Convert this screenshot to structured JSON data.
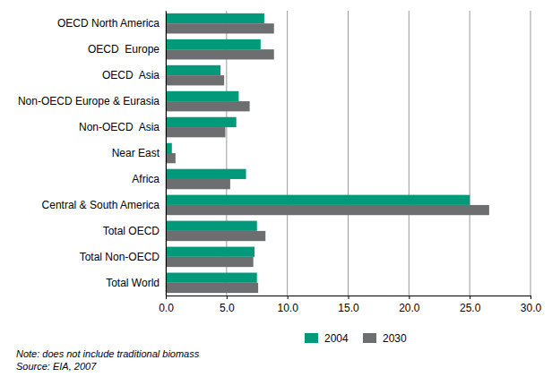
{
  "chart_data": {
    "type": "bar",
    "orientation": "horizontal",
    "grid": true,
    "legend": "bottom",
    "categories": [
      "OECD North America",
      "OECD  Europe",
      "OECD  Asia",
      "Non-OECD Europe & Eurasia",
      "Non-OECD  Asia",
      "Near East",
      "Africa",
      "Central & South America",
      "Total OECD",
      "Total Non-OECD",
      "Total World"
    ],
    "series": [
      {
        "name": "2004",
        "color": "#00997a",
        "values": [
          8.1,
          7.8,
          4.5,
          6.0,
          5.8,
          0.5,
          6.6,
          25.0,
          7.5,
          7.3,
          7.5
        ]
      },
      {
        "name": "2030",
        "color": "#6d6e70",
        "values": [
          8.9,
          8.9,
          4.8,
          6.9,
          4.9,
          0.8,
          5.3,
          26.6,
          8.2,
          7.2,
          7.6
        ]
      }
    ],
    "xlim": [
      0,
      30
    ],
    "xticks": [
      {
        "value": 0,
        "label": "0.0"
      },
      {
        "value": 5,
        "label": "5.0"
      },
      {
        "value": 10,
        "label": "10.0"
      },
      {
        "value": 15,
        "label": "15.0"
      },
      {
        "value": 20,
        "label": "20.0"
      },
      {
        "value": 25,
        "label": "25.0"
      },
      {
        "value": 30,
        "label": "30.0"
      }
    ],
    "annotations": [
      "Note: does not include traditional biomass",
      "Source: EIA, 2007"
    ]
  }
}
